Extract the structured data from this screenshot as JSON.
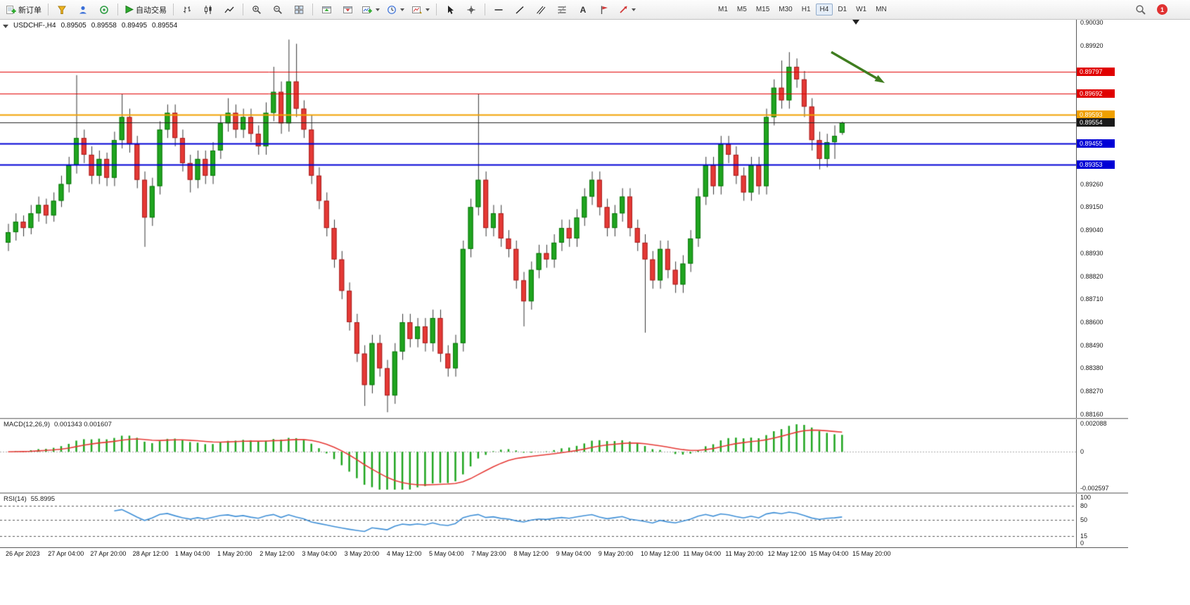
{
  "toolbar": {
    "new_order_label": "新订单",
    "algo_trading_label": "自动交易",
    "text_tool_label": "A",
    "timeframes": [
      "M1",
      "M5",
      "M15",
      "M30",
      "H1",
      "H4",
      "D1",
      "W1",
      "MN"
    ],
    "active_timeframe": "H4",
    "notification_count": "1"
  },
  "header": {
    "symbol_period": "USDCHF-,H4",
    "open": "0.89505",
    "high": "0.89558",
    "low": "0.89495",
    "close": "0.89554"
  },
  "price_axis": {
    "plain_labels": [
      "0.90030",
      "0.89920",
      "0.89260",
      "0.89150",
      "0.89040",
      "0.88930",
      "0.88820",
      "0.88710",
      "0.88600",
      "0.88490",
      "0.88380",
      "0.88270",
      "0.88160"
    ],
    "badges": [
      {
        "label": "0.89797",
        "price": 0.89797,
        "color": "#e00000"
      },
      {
        "label": "0.89692",
        "price": 0.89692,
        "color": "#e00000"
      },
      {
        "label": "0.89593",
        "price": 0.89593,
        "color": "#f0a000"
      },
      {
        "label": "0.89554",
        "price": 0.89554,
        "color": "#1a1a1a"
      },
      {
        "label": "0.89455",
        "price": 0.89455,
        "color": "#0000d6"
      },
      {
        "label": "0.89353",
        "price": 0.89353,
        "color": "#0000d6"
      }
    ]
  },
  "levels": [
    {
      "price": 0.89797,
      "color": "#e00000",
      "width": 1
    },
    {
      "price": 0.89692,
      "color": "#e00000",
      "width": 1
    },
    {
      "price": 0.89593,
      "color": "#f0a000",
      "width": 2
    },
    {
      "price": 0.89554,
      "color": "#222222",
      "width": 1
    },
    {
      "price": 0.89455,
      "color": "#0000d6",
      "width": 2
    },
    {
      "price": 0.89353,
      "color": "#0000d6",
      "width": 2
    }
  ],
  "macd": {
    "label_text": "MACD(12,26,9)",
    "values_text": "0.001343 0.001607",
    "axis_top": "0.002088",
    "axis_zero": "0",
    "axis_bottom": "-0.002597",
    "ylim": [
      -0.002597,
      0.002088
    ]
  },
  "rsi": {
    "label_text": "RSI(14)",
    "value_text": "55.8995",
    "axis_labels": [
      100,
      80,
      50,
      15,
      0
    ],
    "levels": [
      80,
      50,
      15
    ]
  },
  "time_axis": [
    "26 Apr 2023",
    "27 Apr 04:00",
    "27 Apr 20:00",
    "28 Apr 12:00",
    "1 May 04:00",
    "1 May 20:00",
    "2 May 12:00",
    "3 May 04:00",
    "3 May 20:00",
    "4 May 12:00",
    "5 May 04:00",
    "7 May 23:00",
    "8 May 12:00",
    "9 May 04:00",
    "9 May 20:00",
    "10 May 12:00",
    "11 May 04:00",
    "11 May 20:00",
    "12 May 12:00",
    "15 May 04:00",
    "15 May 20:00"
  ],
  "colors": {
    "up": "#1fa51f",
    "down": "#e53935",
    "up_edge": "#0c760c",
    "down_edge": "#a52020",
    "wick": "#333333",
    "macd_hist": "#1fa51f",
    "macd_signal": "#e53935",
    "rsi_line": "#3f8fd6",
    "arrow": "#3f7d1f"
  },
  "chart_data": {
    "type": "candlestick",
    "title": "USDCHF-,H4",
    "symbol": "USDCHF-",
    "period": "H4",
    "ylim": [
      0.88143,
      0.90045
    ],
    "x_labels": [
      "26 Apr 2023",
      "27 Apr 04:00",
      "27 Apr 20:00",
      "28 Apr 12:00",
      "1 May 04:00",
      "1 May 20:00",
      "2 May 12:00",
      "3 May 04:00",
      "3 May 20:00",
      "4 May 12:00",
      "5 May 04:00",
      "7 May 23:00",
      "8 May 12:00",
      "9 May 04:00",
      "9 May 20:00",
      "10 May 12:00",
      "11 May 04:00",
      "11 May 20:00",
      "12 May 12:00",
      "15 May 04:00",
      "15 May 20:00"
    ],
    "candles": [
      [
        0.8898,
        0.8907,
        0.8894,
        0.8903
      ],
      [
        0.8903,
        0.8912,
        0.8899,
        0.8908
      ],
      [
        0.8908,
        0.8911,
        0.8901,
        0.8905
      ],
      [
        0.8905,
        0.8916,
        0.8902,
        0.8912
      ],
      [
        0.8912,
        0.892,
        0.8908,
        0.8916
      ],
      [
        0.8916,
        0.8919,
        0.8907,
        0.8911
      ],
      [
        0.8911,
        0.8922,
        0.8908,
        0.8918
      ],
      [
        0.8918,
        0.893,
        0.8915,
        0.8926
      ],
      [
        0.8926,
        0.8939,
        0.8922,
        0.8935
      ],
      [
        0.8935,
        0.8978,
        0.8931,
        0.8948
      ],
      [
        0.8948,
        0.8952,
        0.8936,
        0.894
      ],
      [
        0.894,
        0.8944,
        0.8926,
        0.893
      ],
      [
        0.893,
        0.8942,
        0.8926,
        0.8938
      ],
      [
        0.8938,
        0.8941,
        0.8925,
        0.8929
      ],
      [
        0.8929,
        0.8951,
        0.8925,
        0.8947
      ],
      [
        0.8947,
        0.8969,
        0.8943,
        0.8958
      ],
      [
        0.8958,
        0.8962,
        0.8941,
        0.8945
      ],
      [
        0.8945,
        0.8949,
        0.8924,
        0.8928
      ],
      [
        0.8928,
        0.8932,
        0.8896,
        0.891
      ],
      [
        0.891,
        0.8929,
        0.8906,
        0.8925
      ],
      [
        0.8925,
        0.8956,
        0.8921,
        0.8952
      ],
      [
        0.8952,
        0.8964,
        0.8948,
        0.896
      ],
      [
        0.896,
        0.8964,
        0.8944,
        0.8948
      ],
      [
        0.8948,
        0.8952,
        0.8932,
        0.8936
      ],
      [
        0.8936,
        0.894,
        0.8922,
        0.8928
      ],
      [
        0.8928,
        0.8942,
        0.8924,
        0.8938
      ],
      [
        0.8938,
        0.8942,
        0.8926,
        0.893
      ],
      [
        0.893,
        0.8946,
        0.8926,
        0.8942
      ],
      [
        0.8942,
        0.8959,
        0.8938,
        0.8955
      ],
      [
        0.8955,
        0.8967,
        0.8951,
        0.896
      ],
      [
        0.896,
        0.8964,
        0.8948,
        0.8952
      ],
      [
        0.8952,
        0.8962,
        0.8948,
        0.8958
      ],
      [
        0.8958,
        0.8962,
        0.8946,
        0.895
      ],
      [
        0.895,
        0.8954,
        0.894,
        0.8944
      ],
      [
        0.8944,
        0.8965,
        0.894,
        0.896
      ],
      [
        0.896,
        0.8982,
        0.8956,
        0.897
      ],
      [
        0.897,
        0.8975,
        0.895,
        0.8955
      ],
      [
        0.8955,
        0.8995,
        0.8951,
        0.8975
      ],
      [
        0.8975,
        0.8993,
        0.8958,
        0.8962
      ],
      [
        0.8962,
        0.8966,
        0.8948,
        0.8952
      ],
      [
        0.8952,
        0.8959,
        0.8926,
        0.893
      ],
      [
        0.893,
        0.8934,
        0.8914,
        0.8918
      ],
      [
        0.8918,
        0.8922,
        0.8901,
        0.8905
      ],
      [
        0.8905,
        0.8909,
        0.8886,
        0.889
      ],
      [
        0.889,
        0.8894,
        0.8871,
        0.8875
      ],
      [
        0.8875,
        0.8879,
        0.8856,
        0.886
      ],
      [
        0.886,
        0.8864,
        0.8841,
        0.8845
      ],
      [
        0.8845,
        0.8849,
        0.882,
        0.883
      ],
      [
        0.883,
        0.8854,
        0.8826,
        0.885
      ],
      [
        0.885,
        0.8854,
        0.8834,
        0.8838
      ],
      [
        0.8838,
        0.8842,
        0.8817,
        0.8825
      ],
      [
        0.8825,
        0.885,
        0.8821,
        0.8846
      ],
      [
        0.8846,
        0.8864,
        0.8842,
        0.886
      ],
      [
        0.886,
        0.8864,
        0.8848,
        0.8852
      ],
      [
        0.8852,
        0.8862,
        0.8848,
        0.8858
      ],
      [
        0.8858,
        0.8862,
        0.8846,
        0.885
      ],
      [
        0.885,
        0.8866,
        0.8846,
        0.8862
      ],
      [
        0.8862,
        0.8866,
        0.8841,
        0.8845
      ],
      [
        0.8845,
        0.8849,
        0.8834,
        0.8838
      ],
      [
        0.8838,
        0.8854,
        0.8834,
        0.885
      ],
      [
        0.885,
        0.8899,
        0.8846,
        0.8895
      ],
      [
        0.8895,
        0.8919,
        0.8891,
        0.8915
      ],
      [
        0.8915,
        0.8969,
        0.8911,
        0.8928
      ],
      [
        0.8928,
        0.8932,
        0.8901,
        0.8905
      ],
      [
        0.8905,
        0.8916,
        0.8901,
        0.8912
      ],
      [
        0.8912,
        0.8916,
        0.8896,
        0.89
      ],
      [
        0.89,
        0.8904,
        0.8891,
        0.8895
      ],
      [
        0.8895,
        0.8899,
        0.8876,
        0.888
      ],
      [
        0.888,
        0.8884,
        0.8858,
        0.887
      ],
      [
        0.887,
        0.8889,
        0.8866,
        0.8885
      ],
      [
        0.8885,
        0.8897,
        0.8881,
        0.8893
      ],
      [
        0.8893,
        0.8897,
        0.8886,
        0.889
      ],
      [
        0.889,
        0.8902,
        0.8886,
        0.8898
      ],
      [
        0.8898,
        0.8909,
        0.8894,
        0.8905
      ],
      [
        0.8905,
        0.8909,
        0.8896,
        0.89
      ],
      [
        0.89,
        0.8914,
        0.8896,
        0.891
      ],
      [
        0.891,
        0.8924,
        0.8906,
        0.892
      ],
      [
        0.892,
        0.8932,
        0.8916,
        0.8928
      ],
      [
        0.8928,
        0.8932,
        0.8911,
        0.8915
      ],
      [
        0.8915,
        0.8919,
        0.8901,
        0.8905
      ],
      [
        0.8905,
        0.8916,
        0.8901,
        0.8912
      ],
      [
        0.8912,
        0.8924,
        0.8908,
        0.892
      ],
      [
        0.892,
        0.8924,
        0.8901,
        0.8905
      ],
      [
        0.8905,
        0.8909,
        0.8894,
        0.8898
      ],
      [
        0.8898,
        0.8902,
        0.8855,
        0.889
      ],
      [
        0.889,
        0.8894,
        0.8876,
        0.888
      ],
      [
        0.888,
        0.8899,
        0.8876,
        0.8895
      ],
      [
        0.8895,
        0.8899,
        0.8881,
        0.8885
      ],
      [
        0.8885,
        0.8889,
        0.8874,
        0.8878
      ],
      [
        0.8878,
        0.8892,
        0.8874,
        0.8888
      ],
      [
        0.8888,
        0.8904,
        0.8884,
        0.89
      ],
      [
        0.89,
        0.8924,
        0.8896,
        0.892
      ],
      [
        0.892,
        0.8939,
        0.8916,
        0.8935
      ],
      [
        0.8935,
        0.8939,
        0.8921,
        0.8925
      ],
      [
        0.8925,
        0.8949,
        0.8921,
        0.8945
      ],
      [
        0.8945,
        0.8949,
        0.8936,
        0.894
      ],
      [
        0.894,
        0.8944,
        0.8926,
        0.893
      ],
      [
        0.893,
        0.8934,
        0.8918,
        0.8922
      ],
      [
        0.8922,
        0.8939,
        0.8918,
        0.8935
      ],
      [
        0.8935,
        0.8939,
        0.8921,
        0.8925
      ],
      [
        0.8925,
        0.8962,
        0.8921,
        0.8958
      ],
      [
        0.8958,
        0.8976,
        0.8954,
        0.8972
      ],
      [
        0.8972,
        0.8985,
        0.8962,
        0.8966
      ],
      [
        0.8966,
        0.8989,
        0.8962,
        0.8982
      ],
      [
        0.8982,
        0.8986,
        0.8972,
        0.8976
      ],
      [
        0.8976,
        0.898,
        0.8958,
        0.8963
      ],
      [
        0.8963,
        0.8967,
        0.8942,
        0.8947
      ],
      [
        0.8947,
        0.8951,
        0.8933,
        0.8938
      ],
      [
        0.8938,
        0.895,
        0.8934,
        0.8946
      ],
      [
        0.8946,
        0.8954,
        0.8938,
        0.8949
      ],
      [
        0.89505,
        0.89558,
        0.89495,
        0.89554
      ]
    ],
    "indicators": [
      {
        "type": "MACD",
        "params": [
          12,
          26,
          9
        ],
        "last_values": [
          0.001343,
          0.001607
        ],
        "ylim": [
          -0.002597,
          0.002088
        ]
      },
      {
        "type": "RSI",
        "params": [
          14
        ],
        "last_value": 55.8995,
        "levels": [
          80,
          50,
          15
        ]
      }
    ],
    "annotations": [
      {
        "type": "arrow",
        "direction": "down-right",
        "color": "#3f7d1f"
      }
    ]
  }
}
